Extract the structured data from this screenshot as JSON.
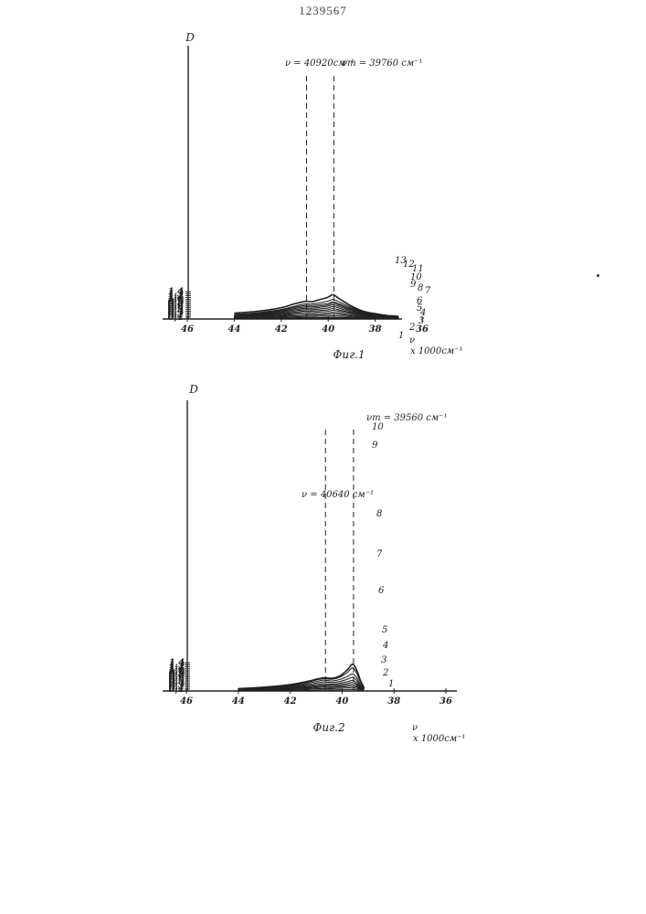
{
  "document": {
    "number": "1239567"
  },
  "colors": {
    "ink": "#222222",
    "paper": "#ffffff"
  },
  "chart_data": [
    {
      "type": "line",
      "caption": "Фиг.1",
      "ylabel": "D",
      "xlabel_top": "ν",
      "xlabel_bottom": "x 1000см⁻¹",
      "x_ticks": [
        "46",
        "44",
        "42",
        "40",
        "38",
        "36"
      ],
      "y_ticks": [
        "1,4",
        "1,3",
        "1,2",
        "1,1",
        "1,0",
        "0,9",
        "0,8",
        "0,7",
        "0,6",
        "0,5",
        "0,4",
        "0,3",
        "0,2",
        "0,1"
      ],
      "xlim": [
        46.0,
        36.0
      ],
      "ylim": [
        0.0,
        1.4
      ],
      "grid": false,
      "annotations": [
        {
          "text": "ν = 40920см⁻¹",
          "x": 40.92
        },
        {
          "text": "νm = 39760 см⁻¹",
          "x": 39.76
        }
      ],
      "curve_labels": [
        "13",
        "12",
        "11",
        "10",
        "9",
        "8",
        "7",
        "6",
        "5",
        "4",
        "3",
        "2",
        "1"
      ],
      "x": [
        44.0,
        43.0,
        42.0,
        41.5,
        41.0,
        40.7,
        40.4,
        40.0,
        39.8,
        39.5,
        39.0,
        38.5,
        38.0,
        37.5,
        37.0
      ],
      "series": [
        {
          "values": [
            0.02,
            0.02,
            0.03,
            0.03,
            0.04,
            0.04,
            0.04,
            0.04,
            0.045,
            0.04,
            0.035,
            0.03,
            0.02,
            0.015,
            0.01
          ]
        },
        {
          "values": [
            0.04,
            0.04,
            0.05,
            0.06,
            0.07,
            0.07,
            0.07,
            0.08,
            0.09,
            0.08,
            0.06,
            0.05,
            0.04,
            0.03,
            0.02
          ]
        },
        {
          "values": [
            0.06,
            0.07,
            0.09,
            0.11,
            0.13,
            0.13,
            0.14,
            0.15,
            0.17,
            0.15,
            0.11,
            0.08,
            0.06,
            0.04,
            0.03
          ]
        },
        {
          "values": [
            0.08,
            0.09,
            0.13,
            0.16,
            0.19,
            0.19,
            0.2,
            0.23,
            0.27,
            0.23,
            0.16,
            0.11,
            0.08,
            0.05,
            0.04
          ]
        },
        {
          "values": [
            0.1,
            0.12,
            0.17,
            0.22,
            0.26,
            0.26,
            0.28,
            0.31,
            0.35,
            0.3,
            0.21,
            0.14,
            0.1,
            0.07,
            0.05
          ]
        },
        {
          "values": [
            0.12,
            0.15,
            0.22,
            0.28,
            0.34,
            0.34,
            0.36,
            0.4,
            0.45,
            0.39,
            0.27,
            0.18,
            0.12,
            0.08,
            0.06
          ]
        },
        {
          "values": [
            0.14,
            0.18,
            0.27,
            0.34,
            0.41,
            0.41,
            0.43,
            0.48,
            0.54,
            0.46,
            0.32,
            0.21,
            0.14,
            0.1,
            0.07
          ]
        },
        {
          "values": [
            0.16,
            0.21,
            0.31,
            0.4,
            0.48,
            0.48,
            0.51,
            0.57,
            0.64,
            0.55,
            0.37,
            0.24,
            0.16,
            0.11,
            0.08
          ]
        },
        {
          "values": [
            0.18,
            0.24,
            0.36,
            0.46,
            0.55,
            0.55,
            0.59,
            0.66,
            0.73,
            0.63,
            0.43,
            0.27,
            0.18,
            0.12,
            0.09
          ]
        },
        {
          "values": [
            0.2,
            0.27,
            0.4,
            0.52,
            0.62,
            0.62,
            0.66,
            0.73,
            0.81,
            0.7,
            0.48,
            0.3,
            0.2,
            0.14,
            0.1
          ]
        },
        {
          "values": [
            0.22,
            0.3,
            0.44,
            0.58,
            0.69,
            0.69,
            0.73,
            0.8,
            0.88,
            0.76,
            0.53,
            0.33,
            0.22,
            0.15,
            0.11
          ]
        },
        {
          "values": [
            0.24,
            0.33,
            0.49,
            0.64,
            0.77,
            0.77,
            0.82,
            0.92,
            1.0,
            0.86,
            0.59,
            0.36,
            0.24,
            0.16,
            0.12
          ]
        },
        {
          "values": [
            0.3,
            0.4,
            0.58,
            0.76,
            0.9,
            0.89,
            0.98,
            1.12,
            1.25,
            1.02,
            0.66,
            0.4,
            0.27,
            0.18,
            0.14
          ]
        }
      ]
    },
    {
      "type": "line",
      "caption": "Фиг.2",
      "ylabel": "D",
      "xlabel_top": "ν",
      "xlabel_bottom": "x 1000см⁻¹",
      "x_ticks": [
        "46",
        "44",
        "42",
        "40",
        "38",
        "36"
      ],
      "y_ticks": [
        "1,4",
        "1,3",
        "1,2",
        "1,1",
        "1,0",
        "0,9",
        "0,8",
        "0,7",
        "0,6",
        "0,5",
        "0,4",
        "0,3",
        "0,2",
        "0,1"
      ],
      "xlim": [
        46.0,
        36.0
      ],
      "ylim": [
        0.0,
        1.4
      ],
      "grid": false,
      "annotations": [
        {
          "text": "ν = 40640 см⁻¹",
          "x": 40.64
        },
        {
          "text": "νm = 39560 см⁻¹",
          "x": 39.56
        }
      ],
      "curve_labels": [
        "10",
        "9",
        "8",
        "7",
        "6",
        "5",
        "4",
        "3",
        "2",
        "1"
      ],
      "x": [
        44.0,
        43.0,
        42.0,
        41.4,
        41.0,
        40.7,
        40.4,
        40.1,
        39.8,
        39.6,
        39.45,
        39.3,
        39.15
      ],
      "series": [
        {
          "values": [
            0.02,
            0.025,
            0.03,
            0.04,
            0.05,
            0.055,
            0.05,
            0.06,
            0.07,
            0.08,
            0.06,
            0.03,
            0.01
          ]
        },
        {
          "values": [
            0.04,
            0.05,
            0.07,
            0.09,
            0.11,
            0.12,
            0.11,
            0.13,
            0.15,
            0.17,
            0.13,
            0.07,
            0.03
          ]
        },
        {
          "values": [
            0.05,
            0.07,
            0.1,
            0.13,
            0.16,
            0.18,
            0.17,
            0.19,
            0.22,
            0.26,
            0.2,
            0.1,
            0.04
          ]
        },
        {
          "values": [
            0.06,
            0.09,
            0.13,
            0.17,
            0.21,
            0.24,
            0.22,
            0.25,
            0.29,
            0.34,
            0.27,
            0.13,
            0.05
          ]
        },
        {
          "values": [
            0.07,
            0.1,
            0.16,
            0.21,
            0.26,
            0.3,
            0.28,
            0.31,
            0.37,
            0.43,
            0.34,
            0.17,
            0.06
          ]
        },
        {
          "values": [
            0.08,
            0.12,
            0.19,
            0.26,
            0.32,
            0.37,
            0.34,
            0.38,
            0.46,
            0.53,
            0.42,
            0.21,
            0.07
          ]
        },
        {
          "values": [
            0.09,
            0.14,
            0.23,
            0.31,
            0.39,
            0.45,
            0.42,
            0.47,
            0.58,
            0.68,
            0.54,
            0.27,
            0.09
          ]
        },
        {
          "values": [
            0.1,
            0.16,
            0.27,
            0.37,
            0.47,
            0.54,
            0.5,
            0.57,
            0.72,
            0.85,
            0.68,
            0.34,
            0.11
          ]
        },
        {
          "values": [
            0.11,
            0.18,
            0.3,
            0.42,
            0.54,
            0.62,
            0.58,
            0.68,
            0.92,
            1.15,
            0.92,
            0.46,
            0.13
          ]
        },
        {
          "values": [
            0.12,
            0.19,
            0.32,
            0.46,
            0.58,
            0.66,
            0.63,
            0.74,
            1.05,
            1.33,
            1.08,
            0.55,
            0.15
          ]
        }
      ]
    }
  ]
}
